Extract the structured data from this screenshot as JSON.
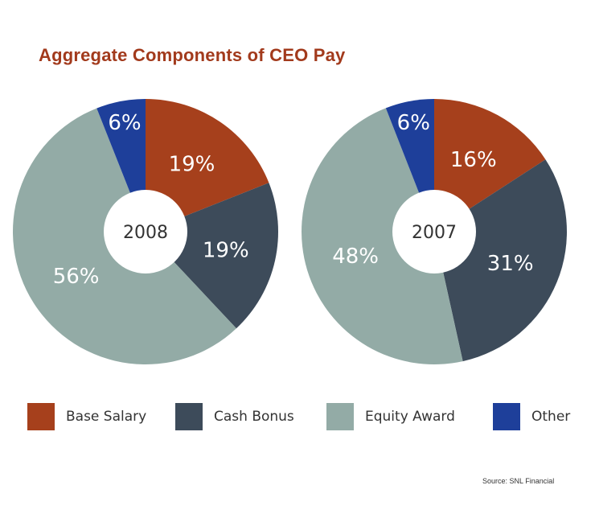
{
  "title": "Aggregate Components of CEO Pay",
  "source": "Source: SNL Financial",
  "categories": [
    "Base Salary",
    "Cash Bonus",
    "Equity Award",
    "Other"
  ],
  "colors": {
    "base_salary": "#a6401c",
    "cash_bonus": "#3d4b5a",
    "equity_award": "#93aba6",
    "other": "#1e3f9a",
    "title": "#a23a1c"
  },
  "chart_data": [
    {
      "type": "pie",
      "center_label": "2008",
      "categories": [
        "Base Salary",
        "Cash Bonus",
        "Equity Award",
        "Other"
      ],
      "values": [
        19,
        19,
        56,
        6
      ],
      "labels": [
        "19%",
        "19%",
        "56%",
        "6%"
      ]
    },
    {
      "type": "pie",
      "center_label": "2007",
      "categories": [
        "Base Salary",
        "Cash Bonus",
        "Equity Award",
        "Other"
      ],
      "values": [
        16,
        31,
        48,
        6
      ],
      "labels": [
        "16%",
        "31%",
        "48%",
        "6%"
      ]
    }
  ]
}
